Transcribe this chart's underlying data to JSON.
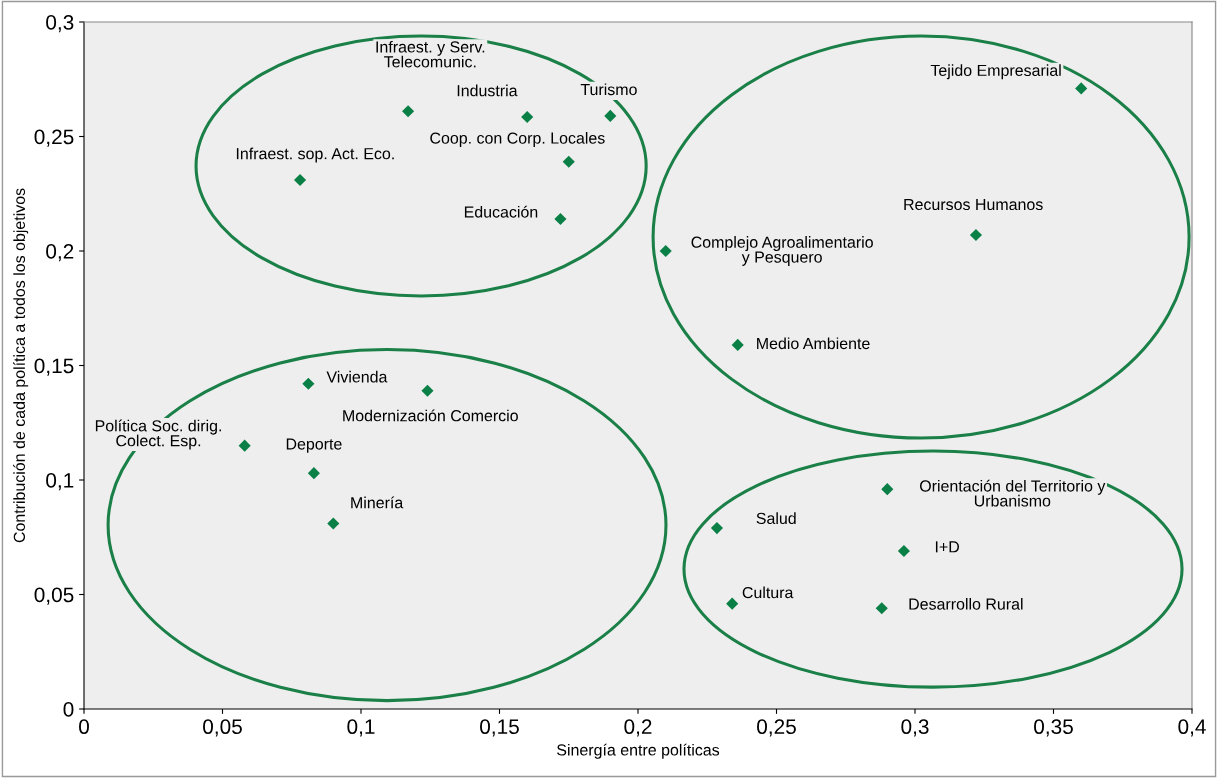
{
  "chart_data": {
    "type": "scatter",
    "xlabel": "Sinergía entre políticas",
    "ylabel": "Contribución de cada política a todos los objetivos",
    "xlim": [
      0,
      0.4
    ],
    "ylim": [
      0,
      0.3
    ],
    "xticks": [
      0,
      {
        "value": 0.05,
        "label": "0,05"
      },
      {
        "value": 0.1,
        "label": "0,1"
      },
      {
        "value": 0.15,
        "label": "0,15"
      },
      {
        "value": 0.2,
        "label": "0,2"
      },
      {
        "value": 0.25,
        "label": "0,25"
      },
      {
        "value": 0.3,
        "label": "0,3"
      },
      {
        "value": 0.35,
        "label": "0,35"
      },
      {
        "value": 0.4,
        "label": "0,4"
      }
    ],
    "yticks": [
      0,
      {
        "value": 0.05,
        "label": "0,05"
      },
      {
        "value": 0.1,
        "label": "0,1"
      },
      {
        "value": 0.15,
        "label": "0,15"
      },
      {
        "value": 0.2,
        "label": "0,2"
      },
      {
        "value": 0.25,
        "label": "0,25"
      },
      {
        "value": 0.3,
        "label": "0,3"
      }
    ],
    "marker": "diamond",
    "grid": false,
    "series": [
      {
        "color": "#0a7f46",
        "x": [
          0.117,
          0.16,
          0.19,
          0.175,
          0.078,
          0.172,
          0.21,
          0.36,
          0.322,
          0.236,
          0.081,
          0.124,
          0.058,
          0.083,
          0.09,
          0.29,
          0.2285,
          0.296,
          0.234,
          0.288
        ],
        "values": [
          0.261,
          0.2585,
          0.259,
          0.239,
          0.231,
          0.214,
          0.2,
          0.271,
          0.207,
          0.159,
          0.142,
          0.139,
          0.115,
          0.103,
          0.081,
          0.096,
          0.079,
          0.069,
          0.046,
          0.044
        ]
      }
    ],
    "annotations": [
      {
        "text": "Infraest. y Serv.\nTelecomunic.",
        "x": 0.117,
        "y": 0.261
      },
      {
        "text": "Industria",
        "x": 0.16,
        "y": 0.2585
      },
      {
        "text": "Turismo",
        "x": 0.19,
        "y": 0.259
      },
      {
        "text": "Coop. con Corp. Locales",
        "x": 0.175,
        "y": 0.239
      },
      {
        "text": "Infraest. sop. Act. Eco.",
        "x": 0.078,
        "y": 0.231
      },
      {
        "text": "Educación",
        "x": 0.172,
        "y": 0.214
      },
      {
        "text": "Complejo Agroalimentario\ny Pesquero",
        "x": 0.21,
        "y": 0.2
      },
      {
        "text": "Tejido Empresarial",
        "x": 0.36,
        "y": 0.271
      },
      {
        "text": "Recursos Humanos",
        "x": 0.322,
        "y": 0.207
      },
      {
        "text": "Medio Ambiente",
        "x": 0.236,
        "y": 0.159
      },
      {
        "text": "Vivienda",
        "x": 0.081,
        "y": 0.142
      },
      {
        "text": "Modernización Comercio",
        "x": 0.124,
        "y": 0.139
      },
      {
        "text": "Política Soc. dirig.\nColect. Esp.",
        "x": 0.058,
        "y": 0.115
      },
      {
        "text": "Deporte",
        "x": 0.083,
        "y": 0.103
      },
      {
        "text": "Minería",
        "x": 0.09,
        "y": 0.081
      },
      {
        "text": "Orientación del Territorio y\nUrbanismo",
        "x": 0.29,
        "y": 0.096
      },
      {
        "text": "Salud",
        "x": 0.2285,
        "y": 0.079
      },
      {
        "text": "I+D",
        "x": 0.296,
        "y": 0.069
      },
      {
        "text": "Cultura",
        "x": 0.234,
        "y": 0.046
      },
      {
        "text": "Desarrollo Rural",
        "x": 0.288,
        "y": 0.044
      }
    ]
  }
}
